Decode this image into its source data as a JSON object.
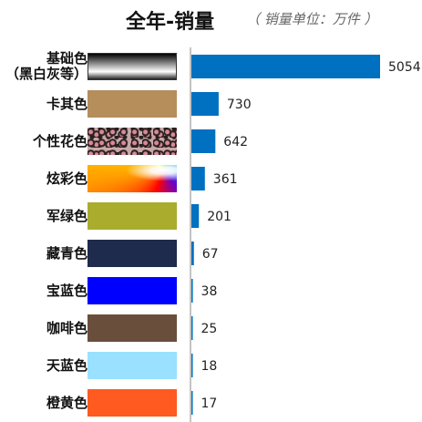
{
  "chart_data": {
    "type": "bar",
    "orientation": "horizontal",
    "title": "全年-销量",
    "subtitle": "（ 销量单位：万件 ）",
    "categories": [
      "基础色\n（黑白灰等）",
      "卡其色",
      "个性花色",
      "炫彩色",
      "军绿色",
      "藏青色",
      "宝蓝色",
      "咖啡色",
      "天蓝色",
      "橙黄色"
    ],
    "values": [
      5054,
      730,
      642,
      361,
      201,
      67,
      38,
      25,
      18,
      17
    ],
    "value_labels": [
      "5054",
      "730",
      "642",
      "361",
      "201",
      "67",
      "38",
      "25",
      "18",
      "17"
    ],
    "xlim": [
      0,
      5054
    ],
    "bar_color": "#0070C0",
    "axis_color": "#888888",
    "swatches": [
      {
        "type": "gradient",
        "colors": [
          "#000000",
          "#ffffff",
          "#222222"
        ]
      },
      {
        "type": "solid",
        "color": "#B58E5C"
      },
      {
        "type": "leopard",
        "colors": [
          "#C7A8A8",
          "#2A1E1E",
          "#D88A9A"
        ]
      },
      {
        "type": "rainbow",
        "colors": [
          "#FF0000",
          "#FF9900",
          "#FFFF00",
          "#00CC00",
          "#00AAFF",
          "#6600CC"
        ]
      },
      {
        "type": "solid",
        "color": "#A9AC2D"
      },
      {
        "type": "solid",
        "color": "#1F2B4D"
      },
      {
        "type": "solid",
        "color": "#0000FF"
      },
      {
        "type": "solid",
        "color": "#6A4E3C"
      },
      {
        "type": "solid",
        "color": "#99E1FF"
      },
      {
        "type": "solid",
        "color": "#FF5A1F"
      }
    ],
    "grid": false,
    "legend": "none"
  }
}
